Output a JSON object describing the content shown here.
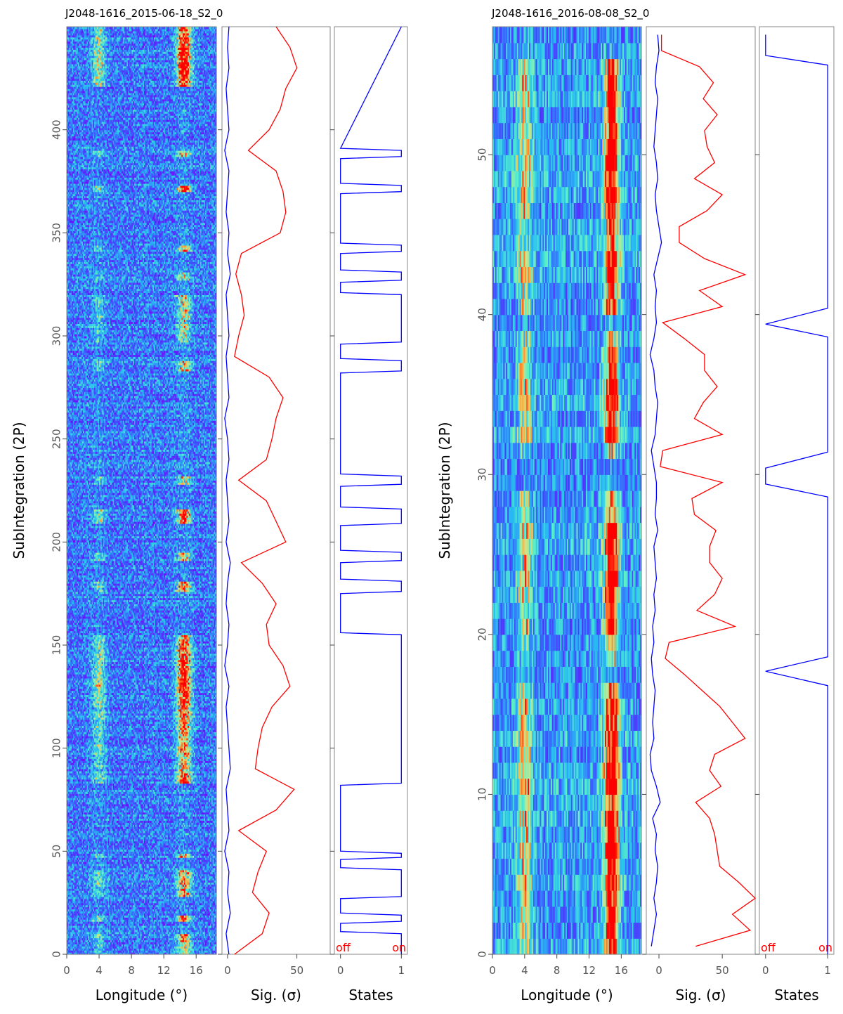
{
  "chart_data": [
    {
      "type": "heatmap",
      "title": "J2048-1616_2015-06-18_S2_0",
      "ylabel": "SubIntegration (2P)",
      "ylim": [
        0,
        450
      ],
      "y_ticks": [
        "0",
        "50",
        "100",
        "150",
        "200",
        "250",
        "300",
        "350",
        "400"
      ],
      "panels": [
        {
          "name": "longitude",
          "xlabel": "Longitude (°)",
          "xlim": [
            0,
            18.5
          ],
          "x_ticks": [
            "0",
            "4",
            "8",
            "12",
            "16"
          ],
          "value_range": [
            0,
            1
          ],
          "colormap": "rainbow"
        },
        {
          "name": "significance",
          "type": "line",
          "xlabel": "Sig. (σ)",
          "xlim": [
            -4,
            74
          ],
          "x_ticks": [
            "0",
            "50"
          ]
        },
        {
          "name": "states",
          "type": "line",
          "xlabel": "States",
          "xlim": [
            -0.1,
            1.1
          ],
          "x_ticks": [
            "0",
            "1"
          ],
          "annotations": [
            "off",
            "on"
          ]
        }
      ],
      "heatmap_rows": 450,
      "components": [
        {
          "name": "left",
          "center": 4,
          "width": 0.8,
          "strength": 0.45
        },
        {
          "name": "right",
          "center": 14.5,
          "width": 0.9,
          "strength": 1.0
        }
      ],
      "series": [
        {
          "name": "on-pulse",
          "color": "#ff0000",
          "x": [
            0,
            10,
            20,
            30,
            40,
            50,
            60,
            70,
            80,
            90,
            100,
            110,
            120,
            130,
            140,
            150,
            160,
            170,
            180,
            190,
            200,
            210,
            220,
            230,
            240,
            250,
            260,
            270,
            280,
            290,
            300,
            310,
            320,
            330,
            340,
            350,
            360,
            370,
            380,
            390,
            400,
            410,
            420,
            430,
            440,
            450
          ],
          "y": [
            5,
            25,
            30,
            18,
            22,
            28,
            8,
            35,
            48,
            20,
            22,
            25,
            32,
            45,
            40,
            30,
            28,
            35,
            25,
            10,
            42,
            35,
            28,
            8,
            28,
            32,
            35,
            40,
            30,
            5,
            8,
            12,
            10,
            6,
            10,
            38,
            42,
            40,
            35,
            15,
            30,
            38,
            42,
            50,
            45,
            35
          ]
        },
        {
          "name": "off-pulse",
          "color": "#0000ff",
          "x": [
            0,
            10,
            20,
            30,
            40,
            50,
            60,
            70,
            80,
            90,
            100,
            110,
            120,
            130,
            140,
            150,
            160,
            170,
            180,
            190,
            200,
            210,
            220,
            230,
            240,
            250,
            260,
            270,
            280,
            290,
            300,
            310,
            320,
            330,
            340,
            350,
            360,
            370,
            380,
            390,
            400,
            410,
            420,
            430,
            440,
            450
          ],
          "y": [
            1,
            -1,
            2,
            0,
            1,
            -2,
            1,
            0,
            -1,
            2,
            1,
            0,
            -1,
            1,
            -2,
            0,
            1,
            -1,
            0,
            2,
            -1,
            1,
            0,
            -1,
            1,
            0,
            -2,
            1,
            0,
            -1,
            1,
            0,
            -1,
            2,
            0,
            1,
            -1,
            0,
            1,
            -2,
            1,
            0,
            -1,
            1,
            0,
            1
          ]
        },
        {
          "name": "state",
          "color": "#0000ff",
          "x": [
            0,
            10,
            11,
            15,
            16,
            19,
            20,
            27,
            28,
            41,
            42,
            46,
            47,
            49,
            50,
            82,
            83,
            155,
            156,
            175,
            176,
            181,
            182,
            190,
            191,
            195,
            196,
            208,
            209,
            216,
            217,
            227,
            228,
            232,
            233,
            282,
            283,
            288,
            289,
            296,
            297,
            320,
            321,
            326,
            327,
            331,
            332,
            340,
            341,
            344,
            345,
            369,
            370,
            373,
            374,
            386,
            387,
            390,
            391,
            450
          ],
          "y": [
            1,
            1,
            0,
            0,
            1,
            1,
            0,
            0,
            1,
            1,
            0,
            0,
            1,
            1,
            0,
            0,
            1,
            1,
            0,
            0,
            1,
            1,
            0,
            0,
            1,
            1,
            0,
            0,
            1,
            1,
            0,
            0,
            1,
            1,
            0,
            0,
            1,
            1,
            0,
            0,
            1,
            1,
            0,
            0,
            1,
            1,
            0,
            0,
            1,
            1,
            0,
            0,
            1,
            1,
            0,
            0,
            1,
            1,
            0,
            1
          ]
        }
      ]
    },
    {
      "type": "heatmap",
      "title": "J2048-1616_2016-08-08_S2_0",
      "ylabel": "SubIntegration (2P)",
      "ylim": [
        0,
        58
      ],
      "y_ticks": [
        "0",
        "10",
        "20",
        "30",
        "40",
        "50"
      ],
      "panels": [
        {
          "name": "longitude",
          "xlabel": "Longitude (°)",
          "xlim": [
            0,
            18.5
          ],
          "x_ticks": [
            "0",
            "4",
            "8",
            "12",
            "16"
          ],
          "value_range": [
            0,
            1
          ],
          "colormap": "rainbow"
        },
        {
          "name": "significance",
          "type": "line",
          "xlabel": "Sig. (σ)",
          "xlim": [
            -10,
            76
          ],
          "x_ticks": [
            "0",
            "50"
          ]
        },
        {
          "name": "states",
          "type": "line",
          "xlabel": "States",
          "xlim": [
            -0.1,
            1.1
          ],
          "x_ticks": [
            "0",
            "1"
          ],
          "annotations": [
            "off",
            "on"
          ]
        }
      ],
      "heatmap_rows": 58,
      "components": [
        {
          "name": "left",
          "center": 4,
          "width": 0.9,
          "strength": 0.5
        },
        {
          "name": "right",
          "center": 14.8,
          "width": 0.9,
          "strength": 1.0
        }
      ],
      "series": [
        {
          "name": "on-pulse",
          "color": "#ff0000",
          "x": [
            0.5,
            1.5,
            2.5,
            3.5,
            4.5,
            5.5,
            6.5,
            7.5,
            8.5,
            9.5,
            10.5,
            11.5,
            12.5,
            13.5,
            14.5,
            15.5,
            16.5,
            17.5,
            18.5,
            19.5,
            20.5,
            21.5,
            22.5,
            23.5,
            24.5,
            25.5,
            26.5,
            27.5,
            28.5,
            29.5,
            30.5,
            31.5,
            32.5,
            33.5,
            34.5,
            35.5,
            36.5,
            37.5,
            38.5,
            39.5,
            40.5,
            41.5,
            42.5,
            43.5,
            44.5,
            45.5,
            46.5,
            47.5,
            48.5,
            49.5,
            50.5,
            51.5,
            52.5,
            53.5,
            54.5,
            55.5,
            56.5,
            57.5
          ],
          "y": [
            29,
            72,
            58,
            76,
            63,
            48,
            46,
            44,
            40,
            29,
            49,
            40,
            44,
            68,
            58,
            48,
            34,
            20,
            5,
            8,
            60,
            30,
            44,
            50,
            40,
            40,
            45,
            28,
            26,
            50,
            1,
            3,
            50,
            28,
            35,
            46,
            36,
            36,
            20,
            3,
            50,
            32,
            68,
            36,
            16,
            16,
            38,
            50,
            28,
            44,
            38,
            36,
            46,
            35,
            43,
            32,
            2,
            2
          ]
        },
        {
          "name": "off-pulse",
          "color": "#0000ff",
          "x": [
            0.5,
            1.5,
            2.5,
            3.5,
            4.5,
            5.5,
            6.5,
            7.5,
            8.5,
            9.5,
            10.5,
            11.5,
            12.5,
            13.5,
            14.5,
            15.5,
            16.5,
            17.5,
            18.5,
            19.5,
            20.5,
            21.5,
            22.5,
            23.5,
            24.5,
            25.5,
            26.5,
            27.5,
            28.5,
            29.5,
            30.5,
            31.5,
            32.5,
            33.5,
            34.5,
            35.5,
            36.5,
            37.5,
            38.5,
            39.5,
            40.5,
            41.5,
            42.5,
            43.5,
            44.5,
            45.5,
            46.5,
            47.5,
            48.5,
            49.5,
            50.5,
            51.5,
            52.5,
            53.5,
            54.5,
            55.5,
            56.5,
            57.5
          ],
          "y": [
            -6,
            -4,
            -2,
            -4,
            -2,
            -1,
            -3,
            -2,
            -5,
            1,
            -2,
            -6,
            -7,
            -4,
            -5,
            -4,
            -3,
            -5,
            -6,
            -4,
            -5,
            -3,
            -4,
            -2,
            -3,
            -4,
            -1,
            -3,
            -2,
            -2,
            -4,
            -6,
            -3,
            -2,
            -1,
            -3,
            -4,
            -7,
            -4,
            -2,
            -3,
            -2,
            -4,
            -1,
            2,
            0,
            -2,
            -3,
            -1,
            -2,
            -4,
            -3,
            -2,
            -1,
            -3,
            -2,
            0,
            -1
          ]
        },
        {
          "name": "state",
          "color": "#0000ff",
          "x": [
            0,
            16.8,
            17.7,
            18.6,
            28.6,
            29.4,
            30.4,
            31.4,
            38.6,
            39.4,
            40.4,
            55.6,
            56.2,
            57.5
          ],
          "y": [
            1,
            1,
            0,
            1,
            1,
            0,
            0,
            1,
            1,
            0,
            1,
            1,
            0,
            0
          ]
        }
      ]
    }
  ]
}
